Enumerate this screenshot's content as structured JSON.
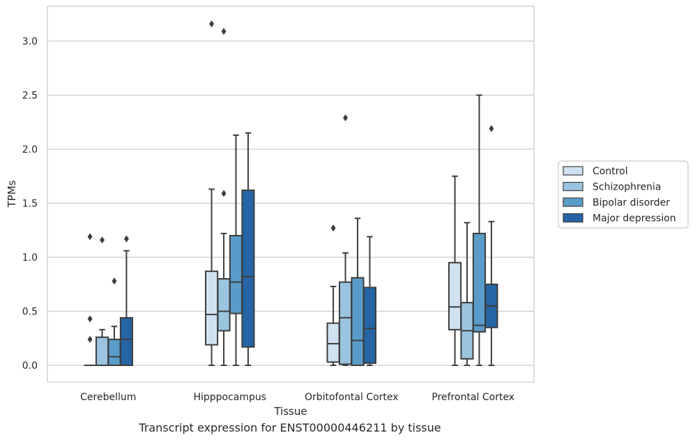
{
  "caption": "Transcript expression for ENST00000446211 by tissue",
  "chart_data": {
    "type": "boxplot",
    "xlabel": "Tissue",
    "ylabel": "TPMs",
    "ylim": [
      -0.15,
      3.3
    ],
    "yticks": [
      0.0,
      0.5,
      1.0,
      1.5,
      2.0,
      2.5,
      3.0
    ],
    "ytick_labels": [
      "0.0",
      "0.5",
      "1.0",
      "1.5",
      "2.0",
      "2.5",
      "3.0"
    ],
    "grid": "horizontal",
    "legend_position": "right",
    "categories": [
      "Cerebellum",
      "Hipppocampus",
      "Orbitofontal Cortex",
      "Prefrontal Cortex"
    ],
    "series": [
      {
        "name": "Control",
        "color": "#d0e2f2",
        "boxes": [
          {
            "whislo": 0.0,
            "q1": 0.0,
            "med": 0.0,
            "q3": 0.0,
            "whishi": 0.0,
            "fliers": [
              0.24,
              0.43,
              1.19
            ]
          },
          {
            "whislo": 0.0,
            "q1": 0.19,
            "med": 0.47,
            "q3": 0.87,
            "whishi": 1.63,
            "fliers": [
              3.16
            ]
          },
          {
            "whislo": 0.0,
            "q1": 0.03,
            "med": 0.2,
            "q3": 0.39,
            "whishi": 0.73,
            "fliers": [
              1.27
            ]
          },
          {
            "whislo": 0.0,
            "q1": 0.33,
            "med": 0.54,
            "q3": 0.95,
            "whishi": 1.75,
            "fliers": []
          }
        ]
      },
      {
        "name": "Schizophrenia",
        "color": "#9ac4e0",
        "boxes": [
          {
            "whislo": 0.0,
            "q1": 0.0,
            "med": 0.0,
            "q3": 0.26,
            "whishi": 0.33,
            "fliers": [
              1.16
            ]
          },
          {
            "whislo": 0.0,
            "q1": 0.32,
            "med": 0.5,
            "q3": 0.8,
            "whishi": 1.22,
            "fliers": [
              1.59,
              3.09
            ]
          },
          {
            "whislo": 0.0,
            "q1": 0.01,
            "med": 0.44,
            "q3": 0.77,
            "whishi": 1.04,
            "fliers": [
              2.29
            ]
          },
          {
            "whislo": 0.0,
            "q1": 0.06,
            "med": 0.32,
            "q3": 0.58,
            "whishi": 1.32,
            "fliers": []
          }
        ]
      },
      {
        "name": "Bipolar disorder",
        "color": "#5a9cc9",
        "boxes": [
          {
            "whislo": 0.0,
            "q1": 0.0,
            "med": 0.08,
            "q3": 0.24,
            "whishi": 0.36,
            "fliers": [
              0.78
            ]
          },
          {
            "whislo": 0.0,
            "q1": 0.48,
            "med": 0.77,
            "q3": 1.2,
            "whishi": 2.13,
            "fliers": []
          },
          {
            "whislo": 0.0,
            "q1": 0.0,
            "med": 0.23,
            "q3": 0.81,
            "whishi": 1.36,
            "fliers": []
          },
          {
            "whislo": 0.0,
            "q1": 0.31,
            "med": 0.37,
            "q3": 1.22,
            "whishi": 2.5,
            "fliers": []
          }
        ]
      },
      {
        "name": "Major depression",
        "color": "#2565a5",
        "boxes": [
          {
            "whislo": 0.0,
            "q1": 0.0,
            "med": 0.24,
            "q3": 0.44,
            "whishi": 1.06,
            "fliers": [
              1.17
            ]
          },
          {
            "whislo": 0.0,
            "q1": 0.17,
            "med": 0.82,
            "q3": 1.62,
            "whishi": 2.15,
            "fliers": []
          },
          {
            "whislo": 0.0,
            "q1": 0.02,
            "med": 0.34,
            "q3": 0.72,
            "whishi": 1.19,
            "fliers": []
          },
          {
            "whislo": 0.0,
            "q1": 0.35,
            "med": 0.55,
            "q3": 0.75,
            "whishi": 1.33,
            "fliers": [
              2.19
            ]
          }
        ]
      }
    ]
  }
}
